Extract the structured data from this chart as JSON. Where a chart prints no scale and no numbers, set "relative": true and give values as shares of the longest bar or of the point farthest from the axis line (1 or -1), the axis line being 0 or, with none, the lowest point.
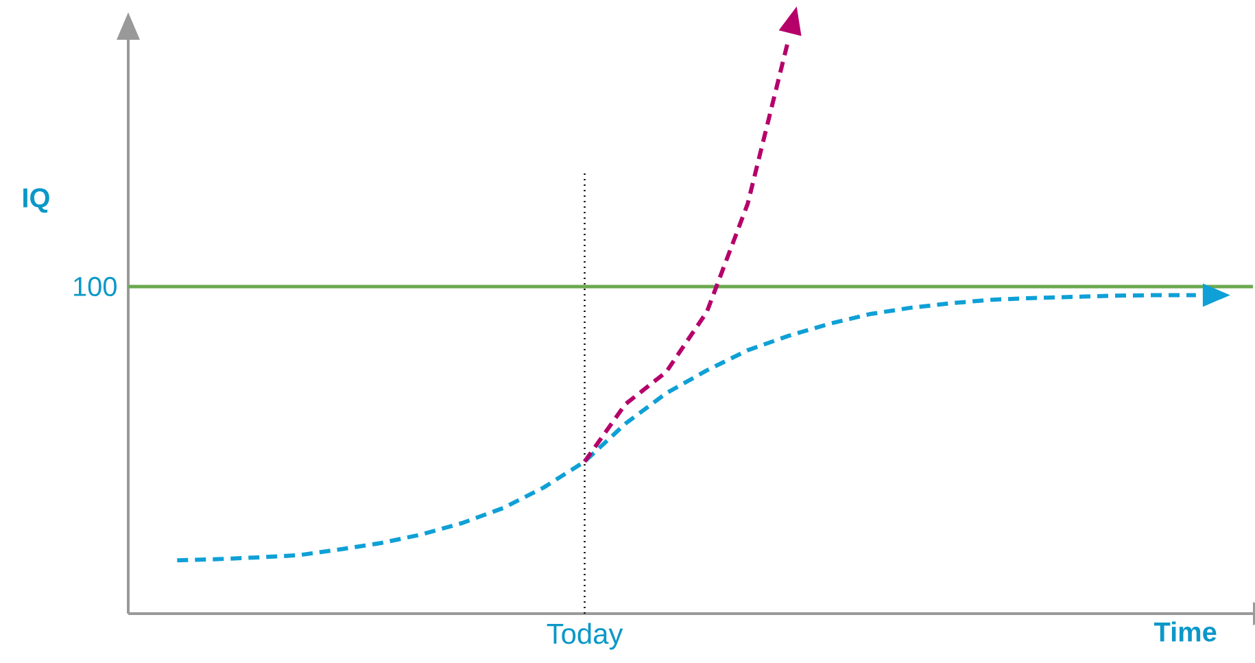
{
  "chart_data": {
    "type": "line",
    "relative": true,
    "xlabel": "Time",
    "ylabel": "IQ",
    "categories": [
      null,
      null,
      null,
      null,
      null,
      null,
      null,
      null,
      null,
      null,
      null,
      null,
      null,
      null,
      null,
      null,
      null,
      null,
      null,
      null,
      null,
      null,
      null,
      null,
      null,
      null
    ],
    "series": [
      {
        "color": "#0ea0d6",
        "line_style": "dashed",
        "values": [
          0.093,
          0.095,
          0.098,
          0.102,
          0.112,
          0.123,
          0.138,
          0.158,
          0.184,
          0.22,
          0.265,
          0.331,
          0.384,
          0.424,
          0.459,
          0.484,
          0.505,
          0.522,
          0.533,
          0.541,
          0.547,
          0.55,
          0.552,
          0.554,
          0.555,
          0.555
        ]
      },
      {
        "color": "#b5006a",
        "line_style": "dashed",
        "values": [
          null,
          null,
          null,
          null,
          null,
          null,
          null,
          null,
          null,
          null,
          0.265,
          0.365,
          0.421,
          0.526,
          0.714,
          1.0,
          null,
          null,
          null,
          null,
          null,
          null,
          null,
          null,
          null,
          null
        ]
      }
    ],
    "ref_lines": [
      {
        "axis": "y",
        "value": 0.57,
        "color": "#6aa84f",
        "line_style": "solid"
      }
    ],
    "annotations": [
      "100",
      "Today"
    ],
    "marker": "none"
  }
}
